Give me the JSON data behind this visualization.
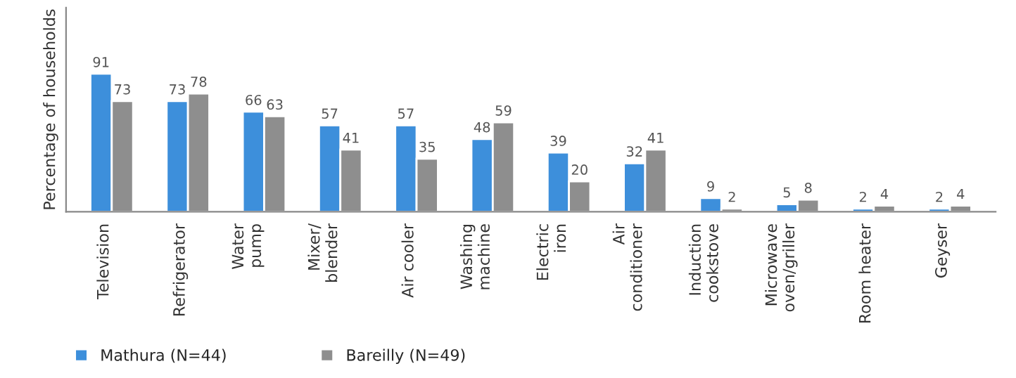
{
  "chart_data": {
    "type": "bar",
    "ylabel": "Percentage of households",
    "categories": [
      "Television",
      "Refrigerator",
      "Water\npump",
      "Mixer/\nblender",
      "Air cooler",
      "Washing\nmachine",
      "Electric\niron",
      "Air\nconditioner",
      "Induction\ncookstove",
      "Microwave\noven/griller",
      "Room heater",
      "Geyser"
    ],
    "series": [
      {
        "name": "Mathura (N=44)",
        "color": "#3d8fdb",
        "values": [
          91,
          73,
          66,
          57,
          57,
          48,
          39,
          32,
          9,
          5,
          2,
          2
        ]
      },
      {
        "name": "Bareilly (N=49)",
        "color": "#8e8e8e",
        "values": [
          73,
          78,
          63,
          41,
          35,
          59,
          20,
          41,
          2,
          8,
          4,
          4
        ]
      }
    ],
    "data_labels": true,
    "legend": "bottom left",
    "grid": false
  }
}
